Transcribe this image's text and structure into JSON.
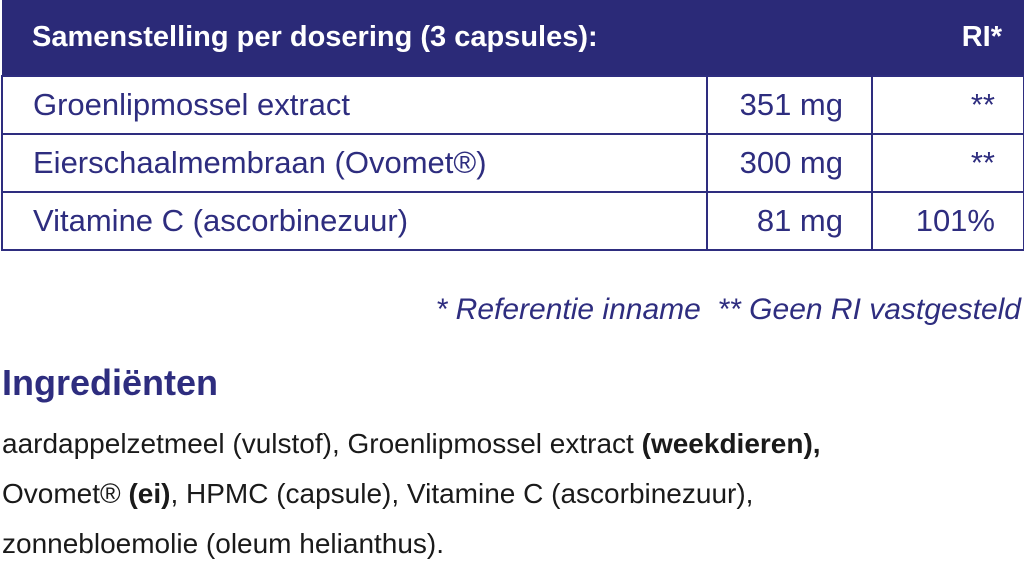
{
  "table": {
    "header": [
      "Samenstelling per dosering (3 capsules):",
      "RI*"
    ],
    "rows": [
      [
        "Groenlipmossel extract",
        "351 mg",
        "**"
      ],
      [
        "Eierschaalmembraan (Ovomet®)",
        "300 mg",
        "**"
      ],
      [
        "Vitamine C (ascorbinezuur)",
        "81 mg",
        "101%"
      ]
    ]
  },
  "footnote": "* Referentie inname  ** Geen RI vastgesteld",
  "ingredients": {
    "title": "Ingrediënten",
    "lines": [
      [
        {
          "text": "aardappelzetmeel (vulstof), Groenlipmossel extract "
        },
        {
          "text": "(weekdieren),",
          "bold": true
        }
      ],
      [
        {
          "text": "Ovomet® "
        },
        {
          "text": "(ei)",
          "bold": true
        },
        {
          "text": ", HPMC (capsule), Vitamine C (ascorbinezuur),"
        }
      ],
      [
        {
          "text": "zonnebloemolie (oleum helianthus)."
        }
      ]
    ]
  }
}
